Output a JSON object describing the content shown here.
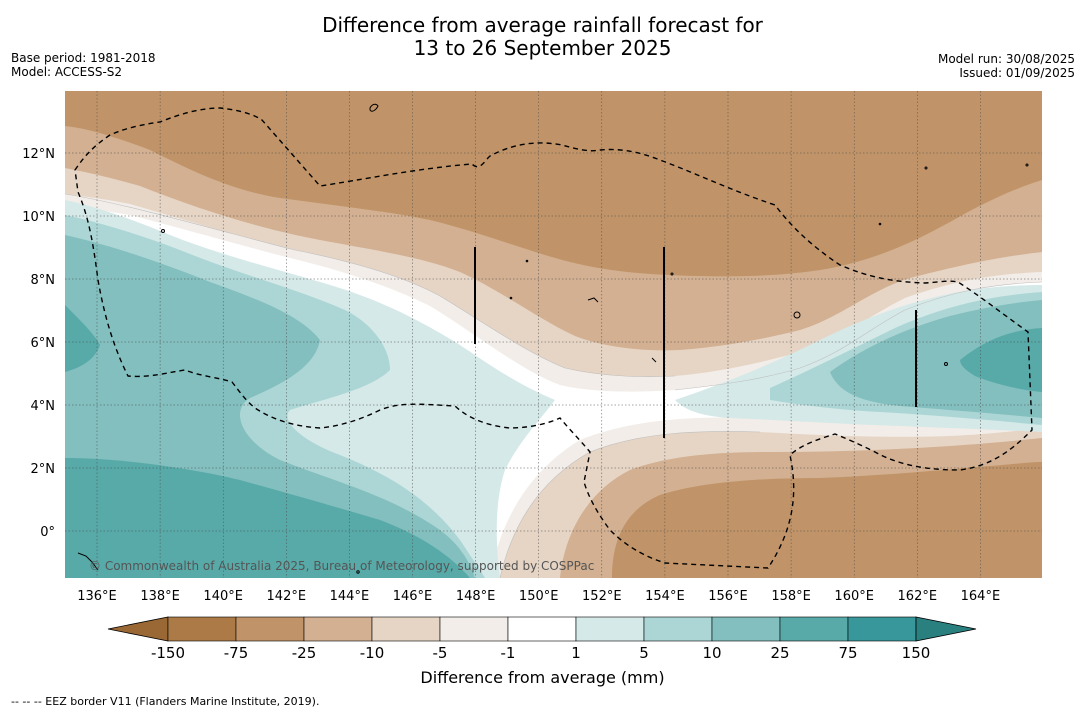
{
  "header": {
    "title_line1": "Difference from average rainfall forecast for",
    "title_line2": "13 to 26 September 2025",
    "base_period": "Base period: 1981-2018",
    "model": "Model: ACCESS-S2",
    "model_run": "Model run: 30/08/2025",
    "issued": "Issued: 01/09/2025"
  },
  "map": {
    "lon_labels": [
      "136°E",
      "138°E",
      "140°E",
      "142°E",
      "144°E",
      "146°E",
      "148°E",
      "150°E",
      "152°E",
      "154°E",
      "156°E",
      "158°E",
      "160°E",
      "162°E",
      "164°E"
    ],
    "lat_labels": [
      "12°N",
      "10°N",
      "8°N",
      "6°N",
      "4°N",
      "2°N",
      "0°"
    ],
    "copyright": "© Commonwealth of Australia 2025, Bureau of Meteorology, supported by COSPPac",
    "eez_line_style": "dashed",
    "land_outline": "black"
  },
  "colorbar": {
    "title": "Difference from average (mm)",
    "tick_labels": [
      "-150",
      "-75",
      "-25",
      "-10",
      "-5",
      "-1",
      "1",
      "5",
      "10",
      "25",
      "75",
      "150"
    ],
    "colors": [
      "#9a6835",
      "#ac7a46",
      "#c09468",
      "#d2b091",
      "#e6d5c5",
      "#f2ede8",
      "#ffffff",
      "#d5e9e8",
      "#acd6d5",
      "#82bfbe",
      "#58aaa9",
      "#37979a",
      "#2a7f7f"
    ]
  },
  "footnote": "--  --  -- EEZ border V11 (Flanders Marine Institute, 2019)."
}
